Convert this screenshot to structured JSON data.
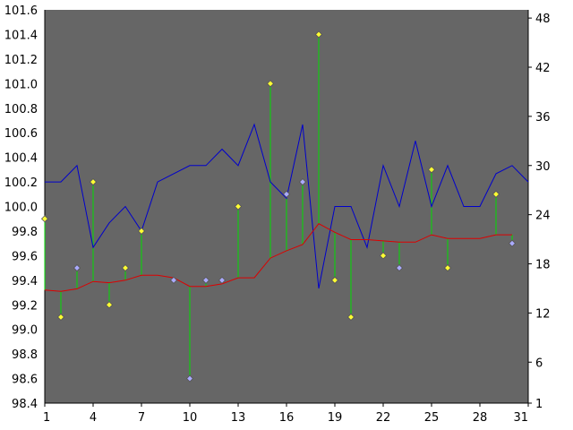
{
  "chart_data": {
    "type": "line",
    "title": "",
    "xlabel": "",
    "ylabel": "",
    "x_tick_labels": [
      "1",
      "4",
      "7",
      "10",
      "13",
      "16",
      "19",
      "22",
      "25",
      "28",
      "31"
    ],
    "x_ticks": [
      1,
      4,
      7,
      10,
      13,
      16,
      19,
      22,
      25,
      28,
      31
    ],
    "xlim": [
      1,
      31
    ],
    "ylim_left": [
      98.4,
      101.6
    ],
    "ylim_right": [
      1,
      49
    ],
    "y_left_tick_labels": [
      "98.4",
      "98.6",
      "98.8",
      "99.0",
      "99.2",
      "99.4",
      "99.6",
      "99.8",
      "100.0",
      "100.2",
      "100.4",
      "100.6",
      "100.8",
      "101.0",
      "101.2",
      "101.4",
      "101.6"
    ],
    "y_left_ticks": [
      98.4,
      98.6,
      98.8,
      99.0,
      99.2,
      99.4,
      99.6,
      99.8,
      100.0,
      100.2,
      100.4,
      100.6,
      100.8,
      101.0,
      101.2,
      101.4,
      101.6
    ],
    "y_right_tick_labels": [
      "1",
      "6",
      "12",
      "18",
      "24",
      "30",
      "36",
      "42",
      "48"
    ],
    "y_right_ticks": [
      1,
      6,
      12,
      18,
      24,
      30,
      36,
      42,
      48
    ],
    "grid": false,
    "plot_background": "#666666",
    "series": [
      {
        "style": "line",
        "axis": "right",
        "color": "#0000cc",
        "x": [
          1,
          2,
          3,
          4,
          5,
          6,
          7,
          8,
          9,
          10,
          11,
          12,
          13,
          14,
          15,
          16,
          17,
          18,
          19,
          20,
          21,
          22,
          23,
          24,
          25,
          26,
          27,
          28,
          29,
          30,
          31
        ],
        "y": [
          28,
          28,
          30,
          20,
          23,
          25,
          22,
          28,
          29,
          30,
          30,
          32,
          30,
          35,
          28,
          26,
          35,
          15,
          25,
          25,
          20,
          30,
          25,
          33,
          25,
          30,
          25,
          25,
          29,
          30,
          28
        ]
      },
      {
        "style": "line",
        "axis": "left",
        "color": "#dd0000",
        "x": [
          1,
          2,
          3,
          4,
          5,
          6,
          7,
          8,
          9,
          10,
          11,
          12,
          13,
          14,
          15,
          16,
          17,
          18,
          19,
          20,
          21,
          22,
          23,
          24,
          25,
          26,
          27,
          28,
          29,
          30
        ],
        "y": [
          99.32,
          99.31,
          99.33,
          99.39,
          99.38,
          99.4,
          99.44,
          99.44,
          99.42,
          99.35,
          99.35,
          99.37,
          99.42,
          99.42,
          99.58,
          99.64,
          99.69,
          99.86,
          99.79,
          99.73,
          99.73,
          99.72,
          99.71,
          99.71,
          99.77,
          99.74,
          99.74,
          99.74,
          99.77,
          99.77
        ]
      },
      {
        "style": "markers",
        "axis": "left",
        "marker_fill": "#ffff33",
        "stem_color": "#00dd00",
        "x": [
          1,
          2,
          4,
          5,
          6,
          7,
          13,
          15,
          18,
          19,
          20,
          22,
          25,
          26,
          29
        ],
        "y": [
          99.9,
          99.1,
          100.2,
          99.2,
          99.5,
          99.8,
          100.0,
          101.0,
          101.4,
          99.4,
          99.1,
          99.6,
          100.3,
          99.5,
          100.1
        ]
      },
      {
        "style": "markers",
        "axis": "left",
        "marker_fill": "#aaaaff",
        "stem_color": "#00dd00",
        "x": [
          3,
          9,
          10,
          11,
          12,
          16,
          17,
          23,
          30
        ],
        "y": [
          99.5,
          99.4,
          98.6,
          99.4,
          99.4,
          100.1,
          100.2,
          99.5,
          99.7
        ]
      }
    ]
  }
}
